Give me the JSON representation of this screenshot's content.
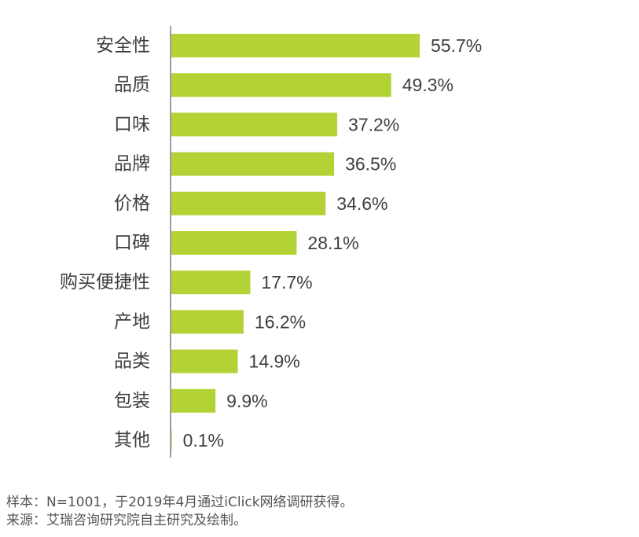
{
  "chart_data": {
    "type": "bar",
    "orientation": "horizontal",
    "categories": [
      "安全性",
      "品质",
      "口味",
      "品牌",
      "价格",
      "口碑",
      "购买便捷性",
      "产地",
      "品类",
      "包装",
      "其他"
    ],
    "values": [
      55.7,
      49.3,
      37.2,
      36.5,
      34.6,
      28.1,
      17.7,
      16.2,
      14.9,
      9.9,
      0.1
    ],
    "value_labels": [
      "55.7%",
      "49.3%",
      "37.2%",
      "36.5%",
      "34.6%",
      "28.1%",
      "17.7%",
      "16.2%",
      "14.9%",
      "9.9%",
      "0.1%"
    ],
    "unit": "%",
    "xlim": [
      0,
      60
    ],
    "bar_color": "#b3d235",
    "grid": false,
    "legend": "none"
  },
  "notes": {
    "sample": "样本：N=1001，于2019年4月通过iClick网络调研获得。",
    "source": "来源：艾瑞咨询研究院自主研究及绘制。"
  }
}
